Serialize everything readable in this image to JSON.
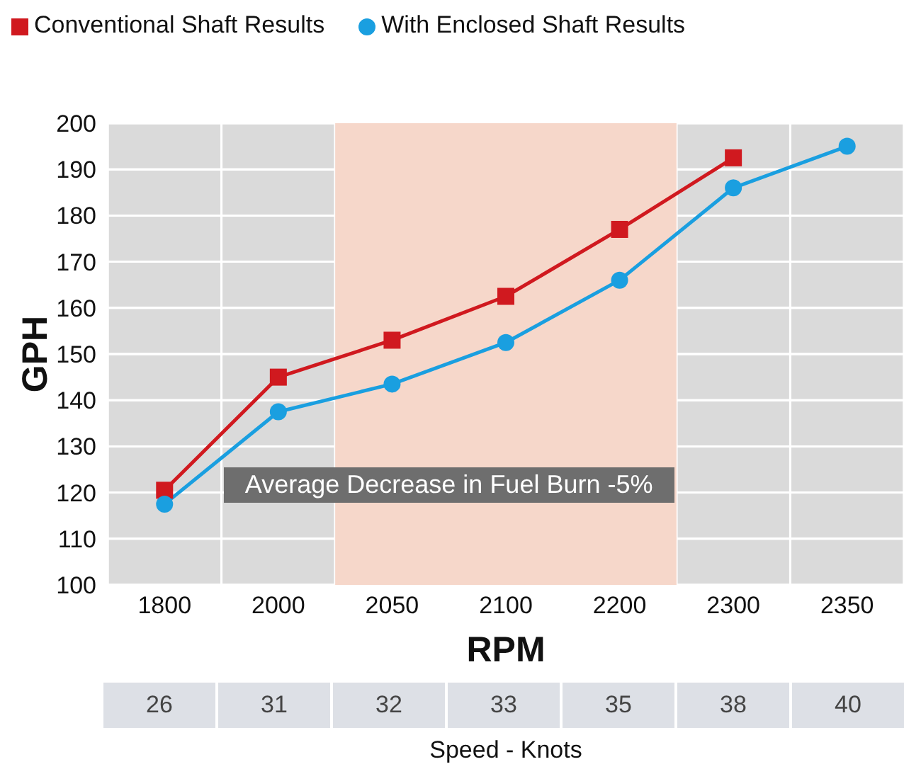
{
  "chart_data": {
    "type": "line",
    "xlabel": "RPM",
    "ylabel": "GPH",
    "categories": [
      "1800",
      "2000",
      "2050",
      "2100",
      "2200",
      "2300",
      "2350"
    ],
    "series": [
      {
        "name": "Conventional Shaft Results",
        "color": "#d0191f",
        "marker": "square",
        "values": [
          120.5,
          145,
          153,
          162.5,
          177,
          192.5,
          null
        ]
      },
      {
        "name": "With Enclosed Shaft Results",
        "color": "#1a9fe0",
        "marker": "circle",
        "values": [
          117.5,
          137.5,
          143.5,
          152.5,
          166,
          186,
          195
        ]
      }
    ],
    "ylim": [
      100,
      200
    ],
    "yticks": [
      100,
      110,
      120,
      130,
      140,
      150,
      160,
      170,
      180,
      190,
      200
    ],
    "grid": true,
    "legend": "top left",
    "bands": [
      {
        "axis": "x",
        "from": "2050",
        "to": "2200",
        "color": "#f6d7ca"
      }
    ],
    "annotations": [
      "Average Decrease in Fuel Burn -5%",
      "26",
      "31",
      "32",
      "33",
      "35",
      "38",
      "40",
      "Speed - Knots"
    ]
  }
}
